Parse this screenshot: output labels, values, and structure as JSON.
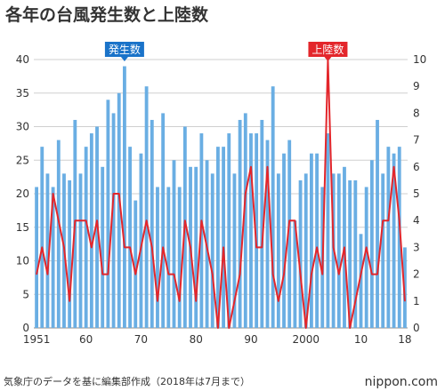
{
  "page": {
    "title": "各年の台風発生数と上陸数",
    "footer": "気象庁のデータを基に編集部作成（2018年は7月まで）",
    "brand": "nippon.com"
  },
  "colors": {
    "bar": "#6aaee3",
    "line": "#e3262b",
    "callout_generation": "#1a73c9",
    "callout_landfall": "#e3262b",
    "grid": "#cfcfcf"
  },
  "chart_data": {
    "type": "bar+line",
    "x_tick_labels": [
      "1951",
      "60",
      "70",
      "80",
      "90",
      "2000",
      "10",
      "18"
    ],
    "x_tick_years": [
      1951,
      1960,
      1970,
      1980,
      1990,
      2000,
      2010,
      2018
    ],
    "years": [
      1951,
      1952,
      1953,
      1954,
      1955,
      1956,
      1957,
      1958,
      1959,
      1960,
      1961,
      1962,
      1963,
      1964,
      1965,
      1966,
      1967,
      1968,
      1969,
      1970,
      1971,
      1972,
      1973,
      1974,
      1975,
      1976,
      1977,
      1978,
      1979,
      1980,
      1981,
      1982,
      1983,
      1984,
      1985,
      1986,
      1987,
      1988,
      1989,
      1990,
      1991,
      1992,
      1993,
      1994,
      1995,
      1996,
      1997,
      1998,
      1999,
      2000,
      2001,
      2002,
      2003,
      2004,
      2005,
      2006,
      2007,
      2008,
      2009,
      2010,
      2011,
      2012,
      2013,
      2014,
      2015,
      2016,
      2017,
      2018
    ],
    "series": [
      {
        "name": "発生数",
        "axis": "left",
        "values": [
          21,
          27,
          23,
          21,
          28,
          23,
          22,
          31,
          23,
          27,
          29,
          30,
          24,
          34,
          32,
          35,
          39,
          27,
          19,
          26,
          36,
          31,
          21,
          32,
          21,
          25,
          21,
          30,
          24,
          24,
          29,
          25,
          23,
          27,
          27,
          29,
          23,
          31,
          32,
          29,
          29,
          31,
          28,
          36,
          23,
          26,
          28,
          16,
          22,
          23,
          26,
          26,
          21,
          29,
          23,
          23,
          24,
          22,
          22,
          14,
          21,
          25,
          31,
          23,
          27,
          26,
          27,
          12
        ]
      },
      {
        "name": "上陸数",
        "axis": "right",
        "values": [
          2,
          3,
          2,
          5,
          4,
          3,
          1,
          4,
          4,
          4,
          3,
          4,
          2,
          2,
          5,
          5,
          3,
          3,
          2,
          3,
          4,
          3,
          1,
          3,
          2,
          2,
          1,
          4,
          3,
          1,
          4,
          3,
          2,
          0,
          3,
          0,
          1,
          2,
          5,
          6,
          3,
          3,
          6,
          2,
          1,
          2,
          4,
          4,
          2,
          0,
          2,
          3,
          2,
          10,
          3,
          2,
          3,
          0,
          1,
          2,
          3,
          2,
          2,
          4,
          4,
          6,
          4,
          1
        ]
      }
    ],
    "y_left": {
      "min": 0,
      "max": 40,
      "ticks": [
        0,
        5,
        10,
        15,
        20,
        25,
        30,
        35,
        40
      ]
    },
    "y_right": {
      "min": 0,
      "max": 10,
      "ticks": [
        0,
        1,
        2,
        3,
        4,
        5,
        6,
        7,
        8,
        9,
        10
      ]
    },
    "grid": true,
    "annotations": [
      {
        "text": "発生数",
        "series": "発生数",
        "year": 1967
      },
      {
        "text": "上陸数",
        "series": "上陸数",
        "year": 2004
      }
    ]
  }
}
